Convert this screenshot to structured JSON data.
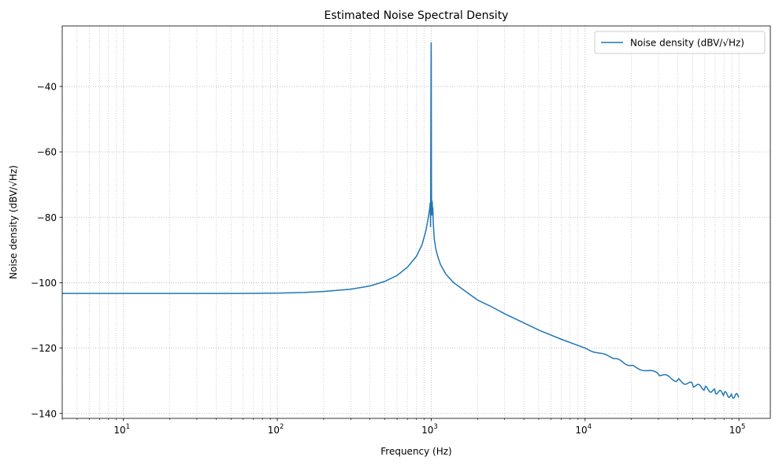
{
  "chart_data": {
    "type": "line",
    "title": "Estimated Noise Spectral Density",
    "xlabel": "Frequency (Hz)",
    "ylabel": "Noise density (dBV/√Hz)",
    "xscale": "log",
    "xlim": [
      4,
      160000
    ],
    "ylim": [
      -141.5,
      -21.5
    ],
    "grid": true,
    "grid_minor": true,
    "legend_position": "top-right",
    "x_ticks": [
      {
        "value": 10,
        "base": "10",
        "exp": "1"
      },
      {
        "value": 100,
        "base": "10",
        "exp": "2"
      },
      {
        "value": 1000,
        "base": "10",
        "exp": "3"
      },
      {
        "value": 10000,
        "base": "10",
        "exp": "4"
      },
      {
        "value": 100000,
        "base": "10",
        "exp": "5"
      }
    ],
    "y_ticks": [
      {
        "value": -40,
        "label": "−40"
      },
      {
        "value": -60,
        "label": "−60"
      },
      {
        "value": -80,
        "label": "−80"
      },
      {
        "value": -100,
        "label": "−100"
      },
      {
        "value": -120,
        "label": "−120"
      },
      {
        "value": -140,
        "label": "−140"
      }
    ],
    "series": [
      {
        "name": "Noise density (dBV/√Hz)",
        "color": "#1f77b4",
        "x": [
          4,
          10,
          30,
          60,
          100,
          150,
          200,
          300,
          400,
          500,
          600,
          700,
          800,
          870,
          920,
          950,
          970,
          980,
          985,
          988,
          990,
          992,
          994,
          996,
          998,
          999,
          1000,
          1001,
          1002,
          1004,
          1006,
          1008,
          1010,
          1013,
          1016,
          1020,
          1025,
          1030,
          1040,
          1050,
          1070,
          1100,
          1150,
          1250,
          1400,
          1600,
          2000,
          2500,
          3000,
          4000,
          5000,
          7000,
          10000,
          15000,
          20000,
          30000,
          40000,
          50000,
          60000,
          70000,
          80000,
          90000,
          100000
        ],
        "values": [
          -103.3,
          -103.3,
          -103.3,
          -103.3,
          -103.2,
          -103.0,
          -102.7,
          -102.0,
          -101.0,
          -99.6,
          -97.8,
          -95.3,
          -92.0,
          -88.5,
          -84.5,
          -81.0,
          -78.5,
          -77.0,
          -75.5,
          -76.5,
          -83.0,
          -78.0,
          -60.0,
          -45.0,
          -33.0,
          -29.0,
          -26.5,
          -32.0,
          -45.0,
          -70.0,
          -77.0,
          -79.5,
          -77.5,
          -75.0,
          -75.5,
          -77.5,
          -77.0,
          -81.0,
          -84.5,
          -87.0,
          -89.5,
          -91.8,
          -94.5,
          -97.5,
          -100.0,
          -102.0,
          -105.3,
          -107.5,
          -109.5,
          -112.3,
          -114.5,
          -117.3,
          -120.0,
          -123.0,
          -125.3,
          -128.0,
          -129.8,
          -131.2,
          -132.3,
          -133.2,
          -134.0,
          -134.5,
          -134.8
        ]
      }
    ]
  }
}
